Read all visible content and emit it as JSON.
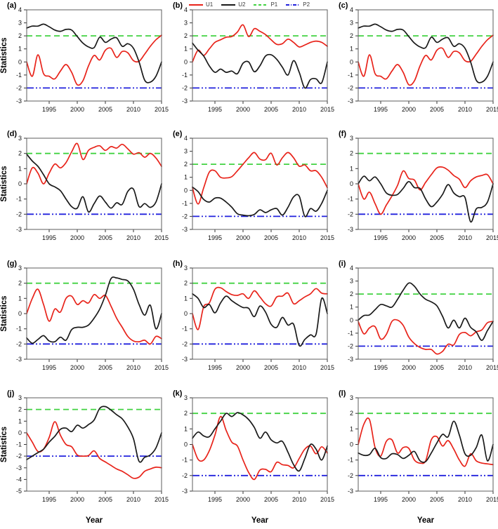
{
  "figure": {
    "ylabel": "Statistics",
    "xlabel": "Year",
    "colors": {
      "U1": "#e8231a",
      "U2": "#1a1a1a",
      "P1": "#41d241",
      "P2": "#2121dd"
    },
    "legend": [
      {
        "label": "U1",
        "color_key": "U1",
        "style": "solid"
      },
      {
        "label": "U2",
        "color_key": "U2",
        "style": "solid"
      },
      {
        "label": "P1",
        "color_key": "P1",
        "style": "dashed"
      },
      {
        "label": "P2",
        "color_key": "P2",
        "style": "dashdot"
      }
    ]
  },
  "chart_data": {
    "type": "line",
    "xlabel": "Year",
    "ylabel": "Statistics",
    "xlim": [
      1991,
      2015
    ],
    "xticks": [
      1995,
      2000,
      2005,
      2010,
      2015
    ],
    "x": [
      1991,
      1992,
      1993,
      1994,
      1995,
      1996,
      1997,
      1998,
      1999,
      2000,
      2001,
      2002,
      2003,
      2004,
      2005,
      2006,
      2007,
      2008,
      2009,
      2010,
      2011,
      2012,
      2013,
      2014,
      2015
    ],
    "ref_lines": [
      {
        "name": "P1",
        "y": 2
      },
      {
        "name": "P2",
        "y": -2
      }
    ],
    "panels": [
      {
        "label": "(a)",
        "ylim": [
          -3,
          4
        ],
        "yticks": [
          -3,
          -2,
          -1,
          0,
          1,
          2,
          3,
          4
        ],
        "series": [
          {
            "name": "U1",
            "values": [
              0.0,
              -1.1,
              0.55,
              -0.9,
              -1.1,
              -1.3,
              -0.7,
              -0.2,
              -0.8,
              -1.75,
              -1.45,
              -0.3,
              0.5,
              0.15,
              0.9,
              1.05,
              0.35,
              0.8,
              0.7,
              0.1,
              0.05,
              0.6,
              1.2,
              1.7,
              2.05
            ]
          },
          {
            "name": "U2",
            "values": [
              2.6,
              2.75,
              2.75,
              2.9,
              2.7,
              2.45,
              2.35,
              2.5,
              2.45,
              1.95,
              1.45,
              1.15,
              1.1,
              1.9,
              1.5,
              1.75,
              1.85,
              1.2,
              1.4,
              1.05,
              0.0,
              -1.4,
              -1.55,
              -1.1,
              0.0
            ]
          }
        ]
      },
      {
        "label": "(b)",
        "ylim": [
          -3,
          4
        ],
        "yticks": [
          -3,
          -2,
          -1,
          0,
          1,
          2,
          3,
          4
        ],
        "series": [
          {
            "name": "U1",
            "values": [
              0.0,
              0.9,
              0.5,
              1.0,
              1.5,
              1.7,
              1.9,
              1.95,
              2.3,
              2.85,
              1.95,
              2.55,
              2.35,
              2.1,
              1.7,
              1.35,
              1.4,
              1.75,
              1.5,
              1.15,
              1.3,
              1.5,
              1.6,
              1.5,
              1.2
            ]
          },
          {
            "name": "U2",
            "values": [
              1.45,
              0.9,
              0.45,
              -0.3,
              -0.8,
              -0.55,
              -0.8,
              -0.7,
              -0.9,
              -0.1,
              0.0,
              -0.75,
              -0.3,
              0.45,
              0.55,
              0.2,
              -0.4,
              -1.0,
              0.1,
              -0.8,
              -2.0,
              -1.35,
              -1.3,
              -1.6,
              0.0
            ]
          }
        ]
      },
      {
        "label": "(c)",
        "ylim": [
          -3,
          4
        ],
        "yticks": [
          -3,
          -2,
          -1,
          0,
          1,
          2,
          3,
          4
        ],
        "series": [
          {
            "name": "U1",
            "values": [
              0.0,
              -1.1,
              0.55,
              -0.9,
              -1.1,
              -1.3,
              -0.7,
              -0.2,
              -0.8,
              -1.75,
              -1.45,
              -0.3,
              0.5,
              0.15,
              0.9,
              1.05,
              0.35,
              0.8,
              0.7,
              0.1,
              0.05,
              0.6,
              1.2,
              1.7,
              2.05
            ]
          },
          {
            "name": "U2",
            "values": [
              2.6,
              2.75,
              2.75,
              2.9,
              2.7,
              2.45,
              2.35,
              2.5,
              2.45,
              1.95,
              1.45,
              1.15,
              1.1,
              1.9,
              1.5,
              1.75,
              1.85,
              1.2,
              1.4,
              1.05,
              0.0,
              -1.4,
              -1.55,
              -1.1,
              0.0
            ]
          }
        ]
      },
      {
        "label": "(d)",
        "ylim": [
          -3,
          3
        ],
        "yticks": [
          -3,
          -2,
          -1,
          0,
          1,
          2,
          3
        ],
        "series": [
          {
            "name": "U1",
            "values": [
              0.0,
              1.05,
              0.7,
              0.0,
              0.7,
              1.3,
              1.05,
              1.4,
              2.1,
              2.65,
              1.6,
              2.2,
              2.4,
              2.5,
              2.2,
              2.45,
              2.35,
              2.6,
              2.3,
              1.95,
              2.05,
              1.75,
              2.0,
              1.7,
              1.15
            ]
          },
          {
            "name": "U2",
            "values": [
              1.95,
              1.5,
              1.15,
              0.6,
              0.0,
              -0.2,
              -0.45,
              -1.0,
              -1.5,
              -1.6,
              -0.85,
              -1.85,
              -1.3,
              -0.8,
              -1.2,
              -1.6,
              -1.25,
              -1.35,
              -0.5,
              -0.35,
              -1.5,
              -1.3,
              -1.55,
              -1.2,
              0.0
            ]
          }
        ]
      },
      {
        "label": "(e)",
        "ylim": [
          -3,
          4
        ],
        "yticks": [
          -3,
          -2,
          -1,
          0,
          1,
          2,
          3,
          4
        ],
        "series": [
          {
            "name": "U1",
            "values": [
              0.2,
              -1.05,
              0.2,
              1.4,
              1.5,
              1.0,
              0.95,
              1.05,
              1.5,
              2.0,
              2.5,
              2.9,
              2.4,
              2.35,
              2.85,
              1.95,
              2.5,
              2.9,
              2.5,
              1.85,
              1.95,
              1.5,
              1.5,
              1.0,
              0.2
            ]
          },
          {
            "name": "U2",
            "values": [
              0.25,
              -0.1,
              -0.7,
              -0.9,
              -0.6,
              -0.6,
              -0.9,
              -1.3,
              -1.8,
              -1.9,
              -1.95,
              -1.85,
              -1.5,
              -1.7,
              -1.5,
              -1.4,
              -1.9,
              -1.3,
              -0.5,
              -0.45,
              -2.0,
              -1.4,
              -1.6,
              -1.0,
              0.0
            ]
          }
        ]
      },
      {
        "label": "(f)",
        "ylim": [
          -3,
          3
        ],
        "yticks": [
          -3,
          -2,
          -1,
          0,
          1,
          2,
          3
        ],
        "series": [
          {
            "name": "U1",
            "values": [
              0.0,
              -1.0,
              -0.55,
              -1.3,
              -2.0,
              -1.4,
              -0.8,
              -0.1,
              0.85,
              0.35,
              0.25,
              -0.4,
              0.1,
              0.6,
              1.05,
              1.1,
              0.9,
              0.55,
              0.3,
              -0.25,
              0.2,
              0.45,
              0.55,
              0.6,
              0.0
            ]
          },
          {
            "name": "U2",
            "values": [
              0.0,
              0.5,
              0.2,
              0.45,
              0.0,
              -0.6,
              -0.75,
              -0.7,
              -0.3,
              0.15,
              -0.25,
              -0.3,
              -1.0,
              -1.5,
              -1.2,
              -0.7,
              -0.05,
              -0.6,
              -0.85,
              -0.9,
              -2.5,
              -1.65,
              -1.55,
              -1.2,
              0.0
            ]
          }
        ]
      },
      {
        "label": "(g)",
        "ylim": [
          -3,
          3
        ],
        "yticks": [
          -3,
          -2,
          -1,
          0,
          1,
          2,
          3
        ],
        "series": [
          {
            "name": "U1",
            "values": [
              0.0,
              1.0,
              1.6,
              0.6,
              -0.5,
              0.3,
              0.1,
              1.0,
              1.15,
              0.6,
              0.85,
              0.7,
              1.25,
              1.0,
              1.2,
              0.5,
              -0.3,
              -0.9,
              -1.5,
              -1.8,
              -1.85,
              -1.75,
              -2.0,
              -1.5,
              -1.65
            ]
          },
          {
            "name": "U2",
            "values": [
              -1.6,
              -1.95,
              -1.7,
              -1.45,
              -1.8,
              -1.85,
              -1.55,
              -1.75,
              -1.05,
              -0.9,
              -0.9,
              -0.75,
              -0.3,
              0.3,
              1.2,
              2.3,
              2.35,
              2.25,
              2.15,
              1.6,
              0.6,
              -0.1,
              0.55,
              -1.0,
              0.0
            ]
          }
        ]
      },
      {
        "label": "(h)",
        "ylim": [
          -3,
          3
        ],
        "yticks": [
          -3,
          -2,
          -1,
          0,
          1,
          2,
          3
        ],
        "series": [
          {
            "name": "U1",
            "values": [
              0.0,
              -1.05,
              0.45,
              0.7,
              1.6,
              1.7,
              1.45,
              1.25,
              1.2,
              1.3,
              1.0,
              1.5,
              1.1,
              0.65,
              0.5,
              1.1,
              1.15,
              1.35,
              0.65,
              0.85,
              1.1,
              1.3,
              1.65,
              1.35,
              1.3
            ]
          },
          {
            "name": "U2",
            "values": [
              1.3,
              1.0,
              0.4,
              0.6,
              0.05,
              0.7,
              1.15,
              0.85,
              0.6,
              0.4,
              0.35,
              -0.2,
              0.5,
              0.1,
              -0.7,
              -0.9,
              -0.25,
              -0.75,
              -0.7,
              -2.1,
              -1.7,
              -1.4,
              -1.35,
              1.0,
              0.0
            ]
          }
        ]
      },
      {
        "label": "(i)",
        "ylim": [
          -3,
          4
        ],
        "yticks": [
          -3,
          -2,
          -1,
          0,
          1,
          2,
          3,
          4
        ],
        "series": [
          {
            "name": "U1",
            "values": [
              -0.1,
              -1.05,
              -0.6,
              -0.5,
              -1.45,
              -1.1,
              -0.1,
              0.0,
              -0.4,
              -1.3,
              -1.8,
              -2.1,
              -2.25,
              -2.25,
              -2.6,
              -2.4,
              -1.85,
              -1.9,
              -1.1,
              -0.95,
              -1.2,
              -0.9,
              -0.75,
              -0.2,
              -0.1
            ]
          },
          {
            "name": "U2",
            "values": [
              0.0,
              0.35,
              0.4,
              0.8,
              1.2,
              1.1,
              1.0,
              1.6,
              2.3,
              2.85,
              2.6,
              2.0,
              1.6,
              1.4,
              1.1,
              0.3,
              -0.6,
              0.0,
              -0.6,
              0.15,
              -0.55,
              -0.9,
              -1.55,
              -0.8,
              -0.1
            ]
          }
        ]
      },
      {
        "label": "(j)",
        "ylim": [
          -5,
          3
        ],
        "yticks": [
          -5,
          -4,
          -3,
          -2,
          -1,
          0,
          1,
          2,
          3
        ],
        "series": [
          {
            "name": "U1",
            "values": [
              0.0,
              -0.8,
              -1.6,
              -1.4,
              -0.4,
              0.95,
              -0.2,
              -1.0,
              -1.2,
              -1.9,
              -2.0,
              -1.95,
              -1.55,
              -2.2,
              -2.5,
              -2.8,
              -3.1,
              -3.3,
              -3.6,
              -3.9,
              -3.8,
              -3.3,
              -3.1,
              -2.95,
              -3.0
            ]
          },
          {
            "name": "U2",
            "values": [
              -2.3,
              -2.0,
              -1.7,
              -1.4,
              -0.8,
              -0.3,
              0.3,
              0.4,
              0.1,
              0.65,
              0.4,
              0.7,
              1.1,
              2.1,
              2.25,
              1.95,
              1.55,
              1.2,
              0.5,
              -0.5,
              -2.45,
              -2.1,
              -1.9,
              -1.3,
              0.0
            ]
          }
        ]
      },
      {
        "label": "(k)",
        "ylim": [
          -3,
          3
        ],
        "yticks": [
          -3,
          -2,
          -1,
          0,
          1,
          2,
          3
        ],
        "series": [
          {
            "name": "U1",
            "values": [
              0.0,
              -0.95,
              -1.0,
              -0.4,
              0.6,
              1.8,
              0.9,
              0.15,
              -0.1,
              -1.0,
              -1.8,
              -2.25,
              -1.65,
              -1.6,
              -1.75,
              -1.15,
              -1.3,
              -1.35,
              -1.5,
              -0.9,
              -0.3,
              -0.1,
              -0.6,
              -0.15,
              -0.55
            ]
          },
          {
            "name": "U2",
            "values": [
              0.4,
              0.8,
              0.55,
              0.5,
              1.0,
              1.5,
              2.0,
              1.8,
              2.05,
              1.9,
              1.6,
              1.1,
              0.4,
              0.8,
              0.3,
              0.1,
              0.2,
              -0.5,
              -1.3,
              -1.7,
              -0.9,
              0.0,
              -0.3,
              -1.0,
              -0.1
            ]
          }
        ]
      },
      {
        "label": "(l)",
        "ylim": [
          -3,
          3
        ],
        "yticks": [
          -3,
          -2,
          -1,
          0,
          1,
          2,
          3
        ],
        "series": [
          {
            "name": "U1",
            "values": [
              0.0,
              1.3,
              1.6,
              -0.2,
              -0.75,
              0.2,
              0.3,
              -0.55,
              -0.2,
              -0.25,
              -1.0,
              -1.2,
              -1.05,
              0.3,
              0.5,
              -0.1,
              0.25,
              -0.3,
              -1.0,
              -1.4,
              -0.6,
              -1.05,
              -1.2,
              -1.25,
              -1.3
            ]
          },
          {
            "name": "U2",
            "values": [
              -0.55,
              -0.7,
              -0.65,
              -0.25,
              -0.85,
              -0.9,
              -0.6,
              -0.65,
              -0.9,
              -0.7,
              -0.45,
              -1.05,
              -1.1,
              -0.55,
              0.1,
              0.65,
              0.5,
              1.5,
              0.6,
              -0.6,
              -0.7,
              -0.2,
              0.6,
              -1.05,
              0.0
            ]
          }
        ]
      }
    ]
  }
}
